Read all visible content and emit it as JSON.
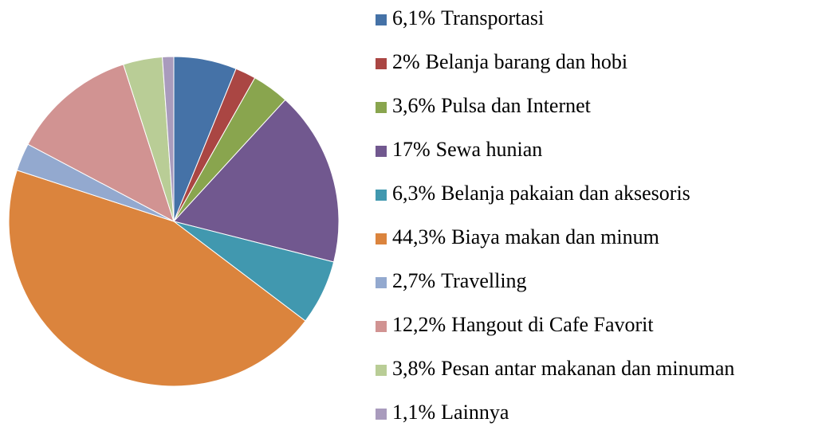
{
  "chart_data": {
    "type": "pie",
    "categories": [
      "Transportasi",
      "Belanja barang dan hobi",
      "Pulsa dan Internet",
      "Sewa hunian",
      "Belanja pakaian dan aksesoris",
      "Biaya makan dan minum",
      "Travelling",
      "Hangout di Cafe Favorit",
      "Pesan antar makanan dan minuman",
      "Lainnya"
    ],
    "values": [
      6.1,
      2,
      3.6,
      17,
      6.3,
      44.3,
      2.7,
      12.2,
      3.8,
      1.1
    ],
    "value_labels": [
      "6,1%",
      "2%",
      "3,6%",
      "17%",
      "6,3%",
      "44,3%",
      "2,7%",
      "12,2%",
      "3,8%",
      "1,1%"
    ],
    "colors": [
      "#4572A7",
      "#AA4643",
      "#89A54E",
      "#71588F",
      "#4198AF",
      "#DB843D",
      "#93A9CF",
      "#D19392",
      "#B9CD96",
      "#A99BBD"
    ],
    "legend": "right"
  }
}
